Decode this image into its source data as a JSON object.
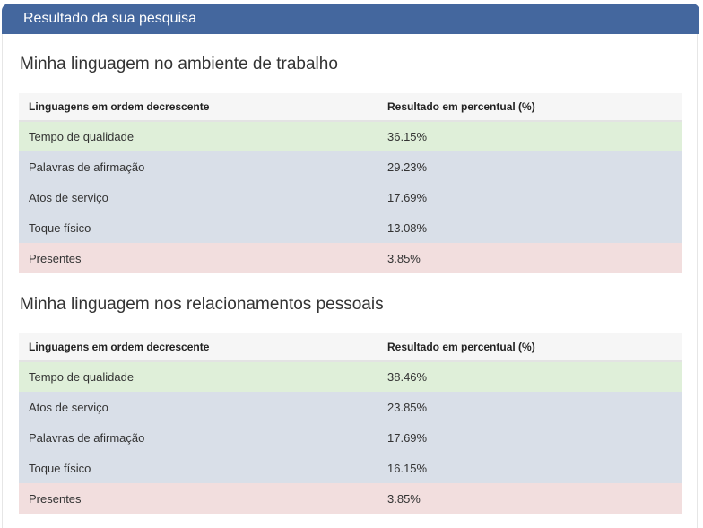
{
  "header": {
    "title": "Resultado da sua pesquisa"
  },
  "colors": {
    "header_bg": "#44679e",
    "row_first": "#dfefd9",
    "row_middle": "#d9dfe8",
    "row_last": "#f2dede"
  },
  "sections": [
    {
      "title": "Minha linguagem no ambiente de trabalho",
      "columns": [
        "Linguagens em ordem decrescente",
        "Resultado em percentual (%)"
      ],
      "rows": [
        {
          "language": "Tempo de qualidade",
          "percent": "36.15%"
        },
        {
          "language": "Palavras de afirmação",
          "percent": "29.23%"
        },
        {
          "language": "Atos de serviço",
          "percent": "17.69%"
        },
        {
          "language": "Toque físico",
          "percent": "13.08%"
        },
        {
          "language": "Presentes",
          "percent": "3.85%"
        }
      ]
    },
    {
      "title": "Minha linguagem nos relacionamentos pessoais",
      "columns": [
        "Linguagens em ordem decrescente",
        "Resultado em percentual (%)"
      ],
      "rows": [
        {
          "language": "Tempo de qualidade",
          "percent": "38.46%"
        },
        {
          "language": "Atos de serviço",
          "percent": "23.85%"
        },
        {
          "language": "Palavras de afirmação",
          "percent": "17.69%"
        },
        {
          "language": "Toque físico",
          "percent": "16.15%"
        },
        {
          "language": "Presentes",
          "percent": "3.85%"
        }
      ]
    }
  ]
}
